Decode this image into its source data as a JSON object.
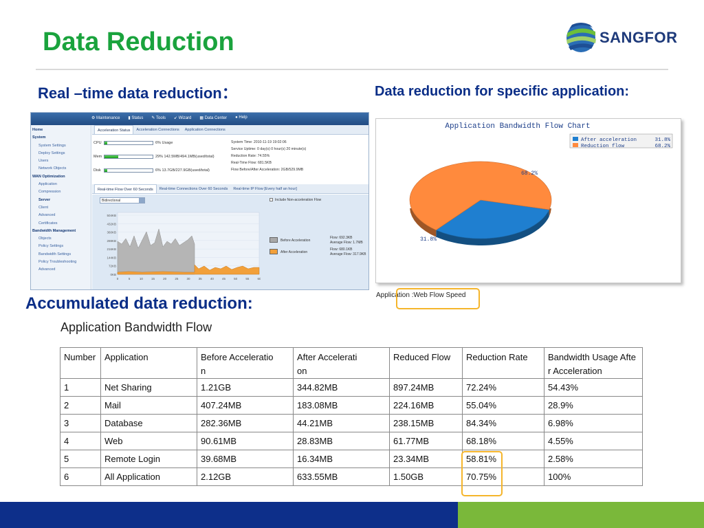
{
  "slide": {
    "title": "Data Reduction",
    "logo_text": "SANGFOR",
    "heading_realtime": "Real –time data reduction：",
    "heading_specific": "Data reduction for specific application:",
    "heading_accumulated": "Accumulated data reduction:",
    "colors": {
      "title": "#1aa33d",
      "heading": "#0b2e87",
      "footer_blue": "#0d2f8a",
      "footer_green": "#7ab83a",
      "highlight": "#f5b52b"
    }
  },
  "console": {
    "menu": [
      "Maintenance",
      "Status",
      "Tools",
      "Wizard",
      "Data Center",
      "Help"
    ],
    "nav": [
      {
        "label": "Home",
        "level": 0
      },
      {
        "label": "System",
        "level": 0
      },
      {
        "label": "System Settings",
        "level": 1
      },
      {
        "label": "Deploy Settings",
        "level": 1
      },
      {
        "label": "Users",
        "level": 1
      },
      {
        "label": "Network Objects",
        "level": 1
      },
      {
        "label": "WAN Optimization",
        "level": 0
      },
      {
        "label": "Application",
        "level": 1
      },
      {
        "label": "Compression",
        "level": 1
      },
      {
        "label": "Server",
        "level": 1,
        "active": true
      },
      {
        "label": "Client",
        "level": 1
      },
      {
        "label": "Advanced",
        "level": 1
      },
      {
        "label": "Certificates",
        "level": 1
      },
      {
        "label": "Bandwidth Management",
        "level": 0
      },
      {
        "label": "Objects",
        "level": 1
      },
      {
        "label": "Policy Settings",
        "level": 1
      },
      {
        "label": "Bandwidth Settings",
        "level": 1
      },
      {
        "label": "Policy Troubleshooting",
        "level": 1
      },
      {
        "label": "Advanced",
        "level": 1
      }
    ],
    "tabs": [
      "Acceleration Status",
      "Acceleration Connections",
      "Application Connections"
    ],
    "resources": [
      {
        "label": "CPU",
        "value": "6% Usage",
        "fill": 0.06
      },
      {
        "label": "Mem",
        "value": "29% 142.5MB/494.1MB(used/total)",
        "fill": 0.29
      },
      {
        "label": "Disk",
        "value": "6% 13.7GB/227.9GB(used/total)",
        "fill": 0.06
      }
    ],
    "system_info": [
      "System Time: 2010-11-19 19:02:06",
      "Service Uptime: 0 day(s) 0 hour(s) 20 minute(s)",
      "Reduction Rate: 74.55%",
      "Real-Time Flow: 681.5KB",
      "Flow Before/After Acceleration: 2GB/529.9MB"
    ],
    "rt_tabs": [
      "Real-time Flow Over 60 Seconds",
      "Real-time Connections Over 60 Seconds",
      "Real-time IP Flow [Every half an hour]"
    ],
    "direction_select": "Bidirectional",
    "include_checkbox": "Include Non-acceleration Flow",
    "y_ticks": [
      "504KB",
      "432KB",
      "360KB",
      "288KB",
      "216KB",
      "144KB",
      "72KB",
      "0KB"
    ],
    "x_ticks": [
      "0",
      "5",
      "10",
      "15",
      "20",
      "25",
      "30",
      "35",
      "40",
      "45",
      "50",
      "55",
      "60"
    ],
    "legend": [
      {
        "label": "Before Acceleration",
        "color": "#a9a9a9",
        "stats": [
          "Flow: 692.3KB",
          "Average Flow: 1.7MB"
        ]
      },
      {
        "label": "After Acceleration",
        "color": "#f2a03a",
        "stats": [
          "Flow: 680.1KB",
          "Average Flow: 317.9KB"
        ]
      }
    ]
  },
  "pie": {
    "title": "Application Bandwidth Flow Chart",
    "caption": "Application :Web Flow Speed",
    "slices": [
      {
        "name": "After acceleration",
        "percent": 31.8,
        "label": "31.8%",
        "legend_value": "31.8%",
        "color": "#1f7fd0"
      },
      {
        "name": "Reduction flow",
        "percent": 68.2,
        "label": "68.2%",
        "legend_value": "68.2%",
        "color": "#ff8a3d"
      }
    ]
  },
  "table": {
    "title": "Application Bandwidth Flow",
    "headers": [
      "Number",
      "Application",
      "Before Acceleration",
      "After Acceleration",
      "Reduced Flow",
      "Reduction Rate",
      "Bandwidth Usage After Acceleration"
    ],
    "header_lines": [
      [
        "Number"
      ],
      [
        "Application"
      ],
      [
        "Before Acceleratio",
        "n"
      ],
      [
        "After Accelerati",
        "on"
      ],
      [
        "Reduced Flow"
      ],
      [
        "Reduction Rate"
      ],
      [
        "Bandwidth Usage Afte",
        "r Acceleration"
      ]
    ],
    "rows": [
      [
        "1",
        "Net Sharing",
        "1.21GB",
        "344.82MB",
        "897.24MB",
        "72.24%",
        "54.43%"
      ],
      [
        "2",
        "Mail",
        "407.24MB",
        "183.08MB",
        "224.16MB",
        "55.04%",
        "28.9%"
      ],
      [
        "3",
        "Database",
        "282.36MB",
        "44.21MB",
        "238.15MB",
        "84.34%",
        "6.98%"
      ],
      [
        "4",
        "Web",
        "90.61MB",
        "28.83MB",
        "61.77MB",
        "68.18%",
        "4.55%"
      ],
      [
        "5",
        "Remote Login",
        "39.68MB",
        "16.34MB",
        "23.34MB",
        "58.81%",
        "2.58%"
      ],
      [
        "6",
        "All Application",
        "2.12GB",
        "633.55MB",
        "1.50GB",
        "70.75%",
        "100%"
      ]
    ]
  }
}
